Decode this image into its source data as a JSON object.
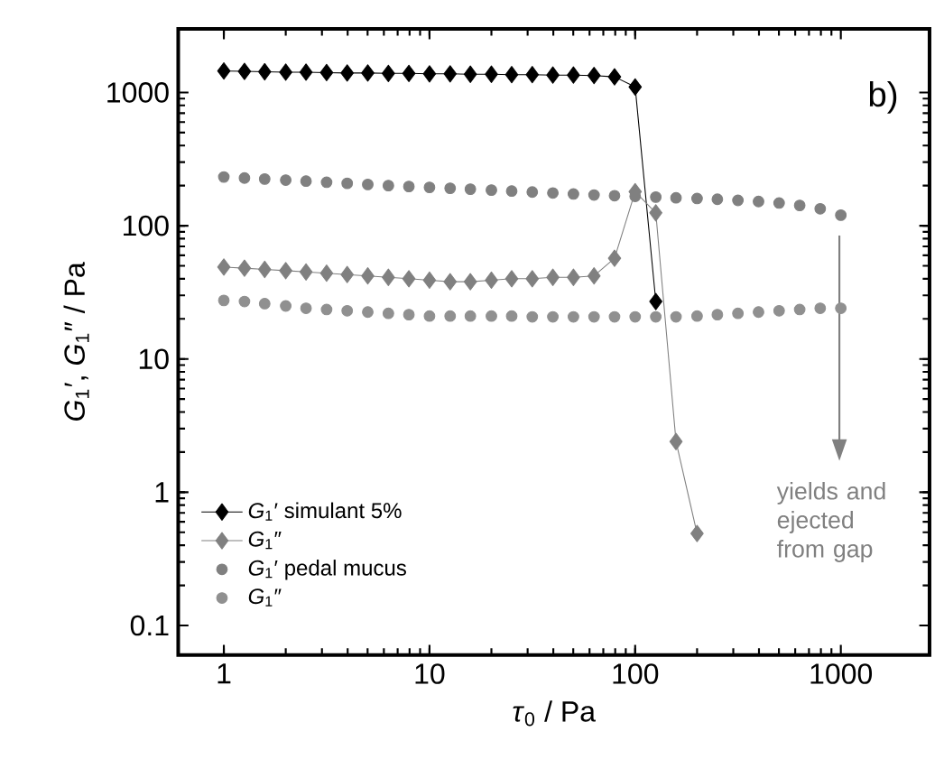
{
  "chart_data": {
    "type": "line",
    "xlabel": "*τ*$_{0}$ / Pa",
    "ylabel": "*G*$_{1}$′, *G*$_{1}$″ / Pa",
    "log": "xy",
    "xlim": [
      0.6,
      2700
    ],
    "ylim": [
      0.06,
      3000
    ],
    "xticks": [
      1,
      10,
      100,
      1000
    ],
    "yticks": [
      0.1,
      1,
      10,
      100,
      1000
    ],
    "legend": "bottom left",
    "annotations": [
      "b)",
      "yields and ejected from gap"
    ],
    "series": [
      {
        "name": "*G*$_{1}$′ simulant 5%",
        "marker": "diamond",
        "color": "#000000",
        "x": [
          1,
          1.26,
          1.58,
          2,
          2.51,
          3.16,
          3.98,
          5.01,
          6.31,
          7.94,
          10,
          12.6,
          15.8,
          20,
          25.1,
          31.6,
          39.8,
          50.1,
          63.1,
          79.4,
          100,
          126
        ],
        "values": [
          1450,
          1440,
          1430,
          1420,
          1420,
          1410,
          1400,
          1400,
          1390,
          1390,
          1380,
          1380,
          1370,
          1370,
          1360,
          1360,
          1350,
          1350,
          1340,
          1310,
          1100,
          27
        ]
      },
      {
        "name": "*G*$_{1}$″",
        "marker": "diamond",
        "color": "#808080",
        "x": [
          1,
          1.26,
          1.58,
          2,
          2.51,
          3.16,
          3.98,
          5.01,
          6.31,
          7.94,
          10,
          12.6,
          15.8,
          20,
          25.1,
          31.6,
          39.8,
          50.1,
          63.1,
          79.4,
          100,
          126,
          158,
          200
        ],
        "values": [
          49,
          48,
          47,
          46,
          45,
          44,
          43,
          42,
          41,
          40,
          39,
          38,
          38,
          39,
          40,
          40,
          41,
          41,
          42,
          57,
          180,
          125,
          2.4,
          0.49
        ]
      },
      {
        "name": "*G*$_{1}$′ pedal mucus",
        "type": "scatter",
        "marker": "circle",
        "color": "#808080",
        "x": [
          1,
          1.26,
          1.58,
          2,
          2.51,
          3.16,
          3.98,
          5.01,
          6.31,
          7.94,
          10,
          12.6,
          15.8,
          20,
          25.1,
          31.6,
          39.8,
          50.1,
          63.1,
          79.4,
          100,
          126,
          158,
          200,
          251,
          316,
          398,
          501,
          631,
          794,
          1000
        ],
        "values": [
          232,
          228,
          224,
          220,
          216,
          212,
          208,
          204,
          200,
          197,
          194,
          191,
          188,
          185,
          182,
          179,
          176,
          173,
          170,
          168,
          166,
          164,
          162,
          160,
          158,
          155,
          152,
          148,
          142,
          134,
          120
        ]
      },
      {
        "name": "*G*$_{1}$″",
        "type": "scatter",
        "marker": "circle",
        "color": "#909090",
        "x": [
          1,
          1.26,
          1.58,
          2,
          2.51,
          3.16,
          3.98,
          5.01,
          6.31,
          7.94,
          10,
          12.6,
          15.8,
          20,
          25.1,
          31.6,
          39.8,
          50.1,
          63.1,
          79.4,
          100,
          126,
          158,
          200,
          251,
          316,
          398,
          501,
          631,
          794,
          1000
        ],
        "values": [
          27.5,
          27,
          26,
          25,
          24,
          23.5,
          23,
          22.5,
          22,
          21.5,
          21,
          21,
          21,
          21,
          21,
          20.7,
          20.7,
          20.7,
          20.7,
          20.7,
          20.7,
          20.7,
          20.7,
          21,
          21.5,
          22,
          22.5,
          23,
          23.5,
          24,
          24
        ]
      }
    ]
  }
}
